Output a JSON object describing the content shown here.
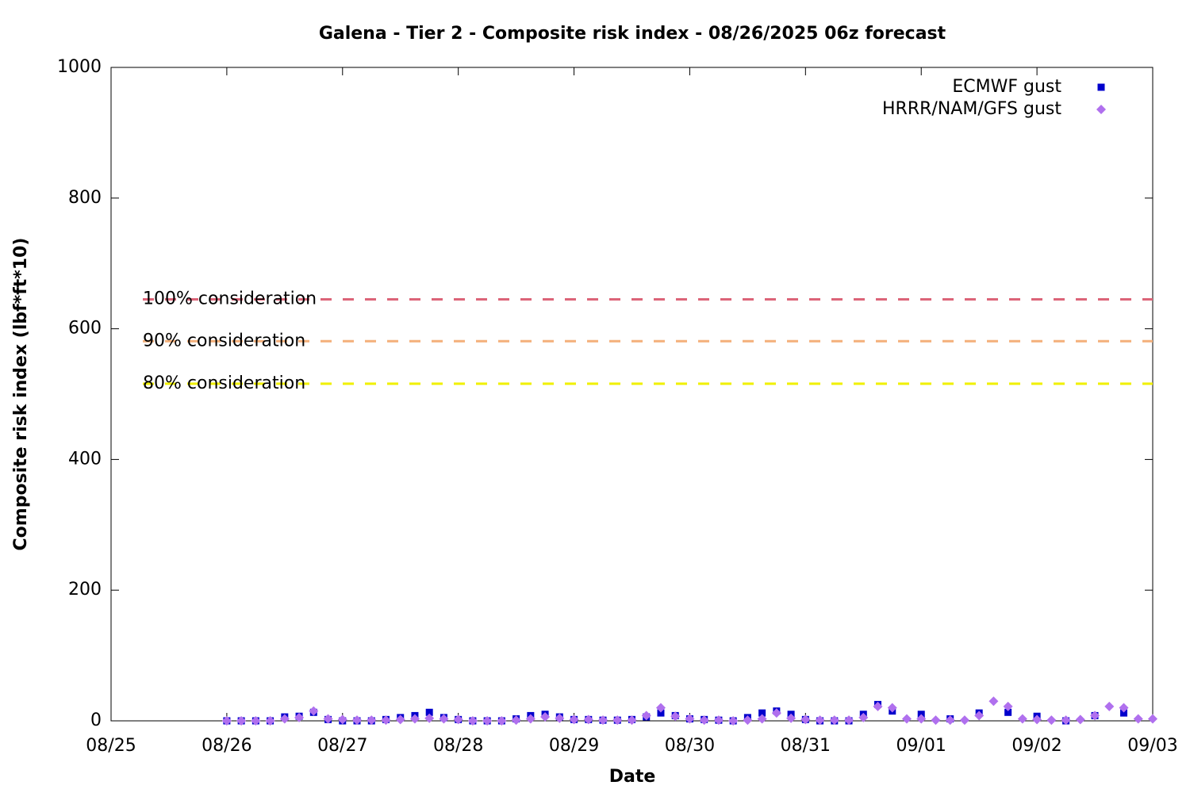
{
  "chart_data": {
    "type": "scatter",
    "title": "Galena - Tier 2 - Composite risk index - 08/26/2025 06z forecast",
    "xlabel": "Date",
    "ylabel": "Composite risk index (lbf*ft*10)",
    "xlim": [
      0,
      9
    ],
    "ylim": [
      0,
      1000
    ],
    "xticks": [
      {
        "value": 0,
        "label": "08/25"
      },
      {
        "value": 1,
        "label": "08/26"
      },
      {
        "value": 2,
        "label": "08/27"
      },
      {
        "value": 3,
        "label": "08/28"
      },
      {
        "value": 4,
        "label": "08/29"
      },
      {
        "value": 5,
        "label": "08/30"
      },
      {
        "value": 6,
        "label": "08/31"
      },
      {
        "value": 7,
        "label": "09/01"
      },
      {
        "value": 8,
        "label": "09/02"
      },
      {
        "value": 9,
        "label": "09/03"
      }
    ],
    "yticks": [
      0,
      200,
      400,
      600,
      800,
      1000
    ],
    "legend": "top-right",
    "thresholds": [
      {
        "label": "100% consideration",
        "value": 645,
        "color": "#dc6478"
      },
      {
        "label": "90% consideration",
        "value": 581,
        "color": "#f4b07a"
      },
      {
        "label": "80% consideration",
        "value": 516,
        "color": "#f0f000"
      }
    ],
    "series": [
      {
        "name": "ECMWF gust",
        "color": "#0000cc",
        "marker": "square",
        "x": [
          1,
          1.125,
          1.25,
          1.375,
          1.5,
          1.625,
          1.75,
          1.875,
          2,
          2.125,
          2.25,
          2.375,
          2.5,
          2.625,
          2.75,
          2.875,
          3,
          3.125,
          3.25,
          3.375,
          3.5,
          3.625,
          3.75,
          3.875,
          4,
          4.125,
          4.25,
          4.375,
          4.5,
          4.625,
          4.75,
          4.875,
          5,
          5.125,
          5.25,
          5.375,
          5.5,
          5.625,
          5.75,
          5.875,
          6,
          6.125,
          6.25,
          6.375,
          6.5,
          6.625,
          6.75,
          7,
          7.25,
          7.5,
          7.75,
          8,
          8.25,
          8.5,
          8.75
        ],
        "values": [
          0,
          0,
          0,
          0,
          6,
          7,
          13,
          2,
          0,
          0,
          0,
          2,
          5,
          8,
          13,
          5,
          2,
          0,
          0,
          0,
          3,
          8,
          10,
          6,
          2,
          2,
          1,
          1,
          2,
          6,
          12,
          8,
          3,
          2,
          1,
          0,
          5,
          12,
          15,
          10,
          2,
          0,
          0,
          0,
          10,
          25,
          15,
          10,
          3,
          12,
          13,
          7,
          0,
          8,
          12
        ]
      },
      {
        "name": "HRRR/NAM/GFS gust",
        "color": "#b070ee",
        "marker": "diamond",
        "x": [
          1,
          1.125,
          1.25,
          1.375,
          1.5,
          1.625,
          1.75,
          1.875,
          2,
          2.125,
          2.25,
          2.375,
          2.5,
          2.625,
          2.75,
          2.875,
          3,
          3.125,
          3.25,
          3.375,
          3.5,
          3.625,
          3.75,
          3.875,
          4,
          4.125,
          4.25,
          4.375,
          4.5,
          4.625,
          4.75,
          4.875,
          5,
          5.125,
          5.25,
          5.375,
          5.5,
          5.625,
          5.75,
          5.875,
          6,
          6.125,
          6.25,
          6.375,
          6.5,
          6.625,
          6.75,
          6.875,
          7,
          7.125,
          7.25,
          7.375,
          7.5,
          7.625,
          7.75,
          7.875,
          8,
          8.125,
          8.25,
          8.375,
          8.5,
          8.625,
          8.75,
          8.875,
          9
        ],
        "values": [
          0,
          0,
          0,
          0,
          3,
          5,
          15,
          3,
          2,
          1,
          1,
          1,
          2,
          3,
          4,
          3,
          2,
          0,
          0,
          0,
          1,
          3,
          6,
          4,
          2,
          2,
          1,
          1,
          1,
          8,
          20,
          7,
          3,
          1,
          1,
          0,
          1,
          3,
          12,
          4,
          2,
          1,
          1,
          1,
          5,
          22,
          20,
          3,
          3,
          1,
          1,
          1,
          8,
          30,
          22,
          3,
          2,
          1,
          1,
          2,
          8,
          22,
          20,
          3,
          3
        ]
      }
    ]
  }
}
